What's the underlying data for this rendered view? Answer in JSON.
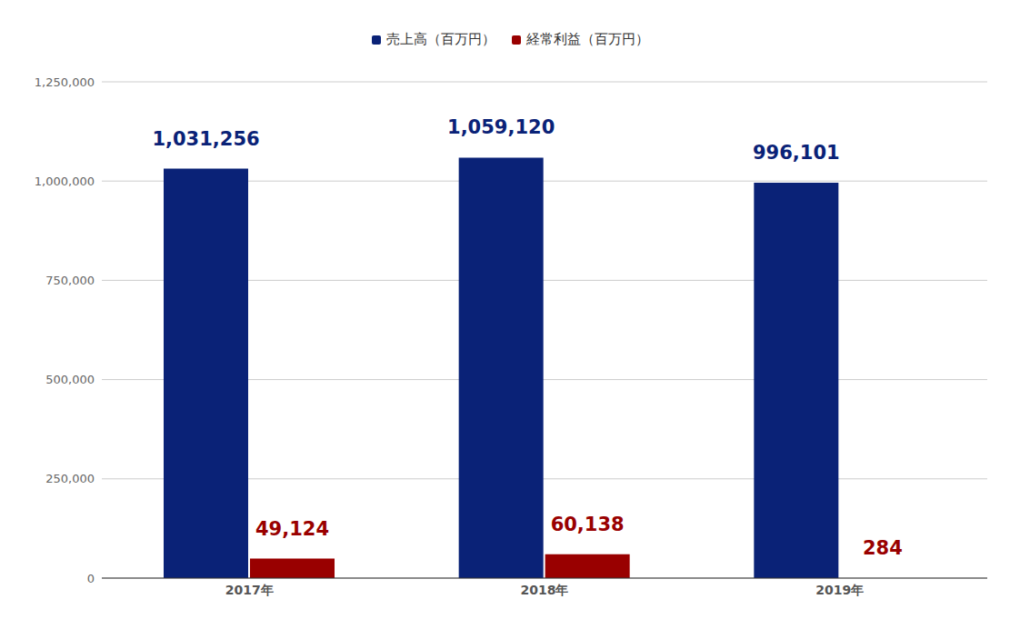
{
  "chart_data": {
    "type": "bar",
    "categories": [
      "2017年",
      "2018年",
      "2019年"
    ],
    "series": [
      {
        "name": "売上高（百万円）",
        "color": "#0a2277",
        "values": [
          1031256,
          1059120,
          996101
        ],
        "value_labels": [
          "1,031,256",
          "1,059,120",
          "996,101"
        ]
      },
      {
        "name": "経常利益（百万円）",
        "color": "#990000",
        "values": [
          49124,
          60138,
          284
        ],
        "value_labels": [
          "49,124",
          "60,138",
          "284"
        ]
      }
    ],
    "ylim": [
      0,
      1250000
    ],
    "yticks": [
      {
        "value": 0,
        "label": "0"
      },
      {
        "value": 250000,
        "label": "250,000"
      },
      {
        "value": 500000,
        "label": "500,000"
      },
      {
        "value": 750000,
        "label": "750,000"
      },
      {
        "value": 1000000,
        "label": "1,000,000"
      },
      {
        "value": 1250000,
        "label": "1,250,000"
      }
    ],
    "grid": true,
    "legend": "top",
    "data_labels": true
  }
}
